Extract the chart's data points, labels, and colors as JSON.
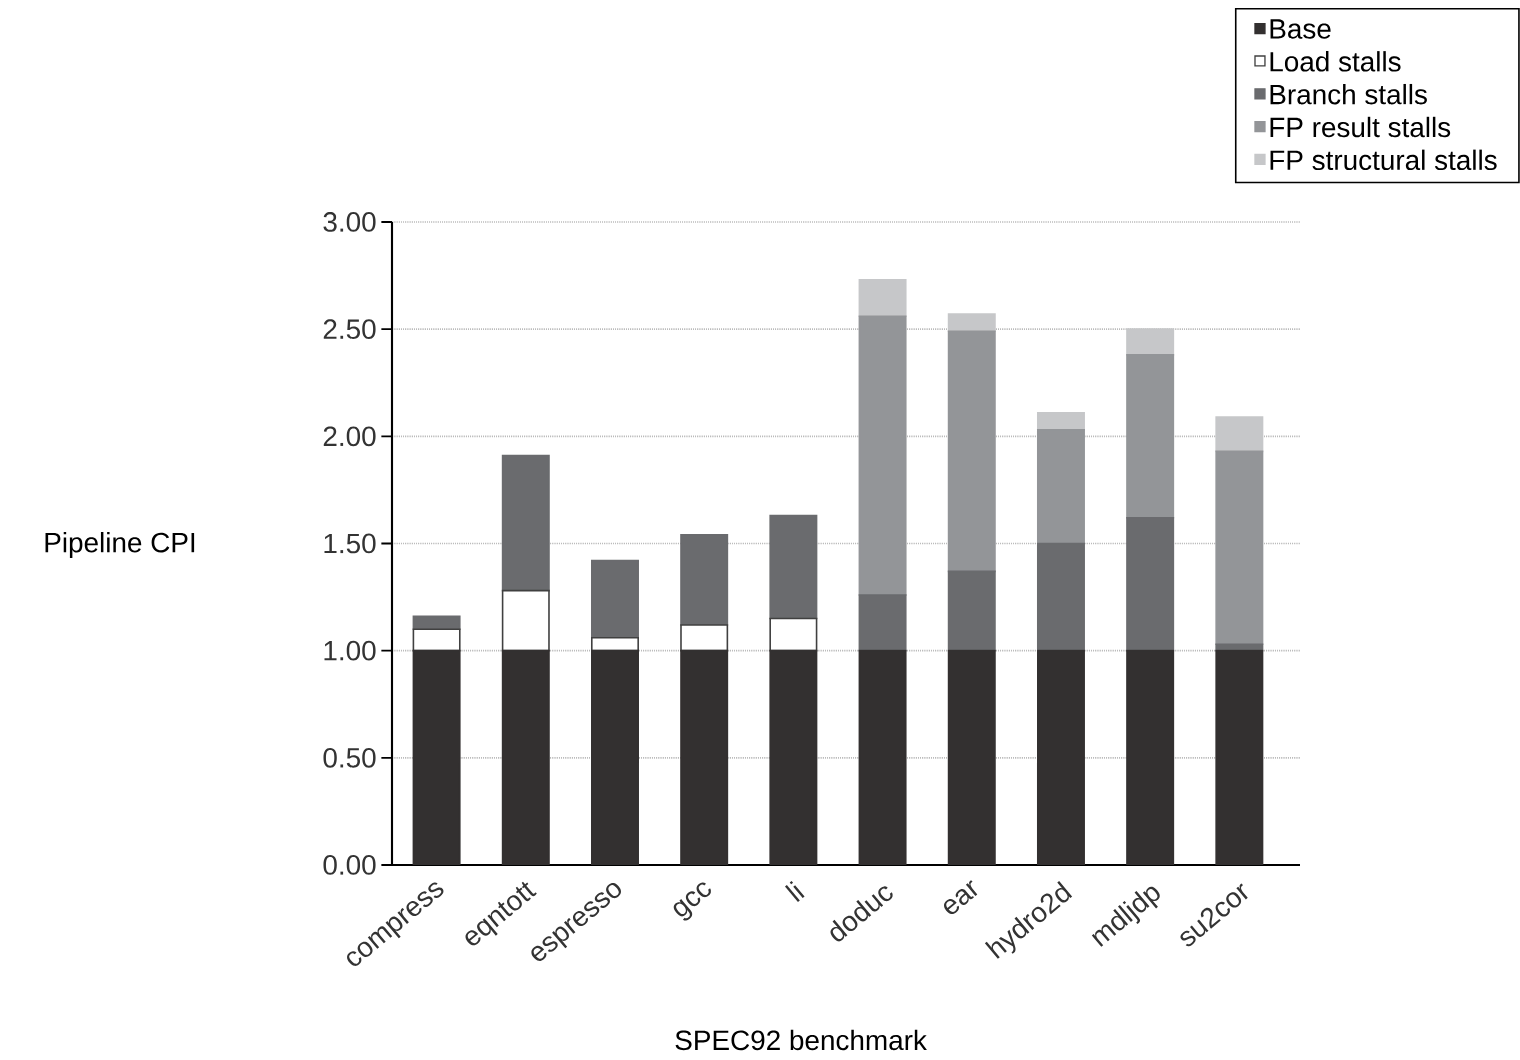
{
  "chart_data": {
    "type": "bar",
    "stacked": true,
    "xlabel": "SPEC92 benchmark",
    "ylabel": "Pipeline CPI",
    "categories": [
      "compress",
      "eqntott",
      "espresso",
      "gcc",
      "li",
      "doduc",
      "ear",
      "hydro2d",
      "mdljdp",
      "su2cor"
    ],
    "series": [
      {
        "name": "Base",
        "color": "#333030",
        "values": [
          1.0,
          1.0,
          1.0,
          1.0,
          1.0,
          1.0,
          1.0,
          1.0,
          1.0,
          1.0
        ]
      },
      {
        "name": "Load stalls",
        "color": "#ffffff",
        "values": [
          0.1,
          0.28,
          0.06,
          0.12,
          0.15,
          0,
          0,
          0,
          0,
          0
        ]
      },
      {
        "name": "Branch stalls",
        "color": "#6a6b6e",
        "values": [
          0.06,
          0.63,
          0.36,
          0.42,
          0.48,
          0.26,
          0.37,
          0.5,
          0.62,
          0.03
        ]
      },
      {
        "name": "FP result stalls",
        "color": "#939598",
        "values": [
          0,
          0,
          0,
          0,
          0,
          1.3,
          1.12,
          0.53,
          0.76,
          0.9
        ]
      },
      {
        "name": "FP structural stalls",
        "color": "#c6c7c9",
        "values": [
          0,
          0,
          0,
          0,
          0,
          0.17,
          0.08,
          0.08,
          0.12,
          0.16
        ]
      }
    ],
    "ylim": [
      0,
      3
    ],
    "yticks": [
      {
        "value": 0,
        "label": "0.00"
      },
      {
        "value": 0.5,
        "label": "0.50"
      },
      {
        "value": 1,
        "label": "1.00"
      },
      {
        "value": 1.5,
        "label": "1.50"
      },
      {
        "value": 2,
        "label": "2.00"
      },
      {
        "value": 2.5,
        "label": "2.50"
      },
      {
        "value": 3,
        "label": "3.00"
      }
    ],
    "grid": "y",
    "legend": "top right"
  }
}
